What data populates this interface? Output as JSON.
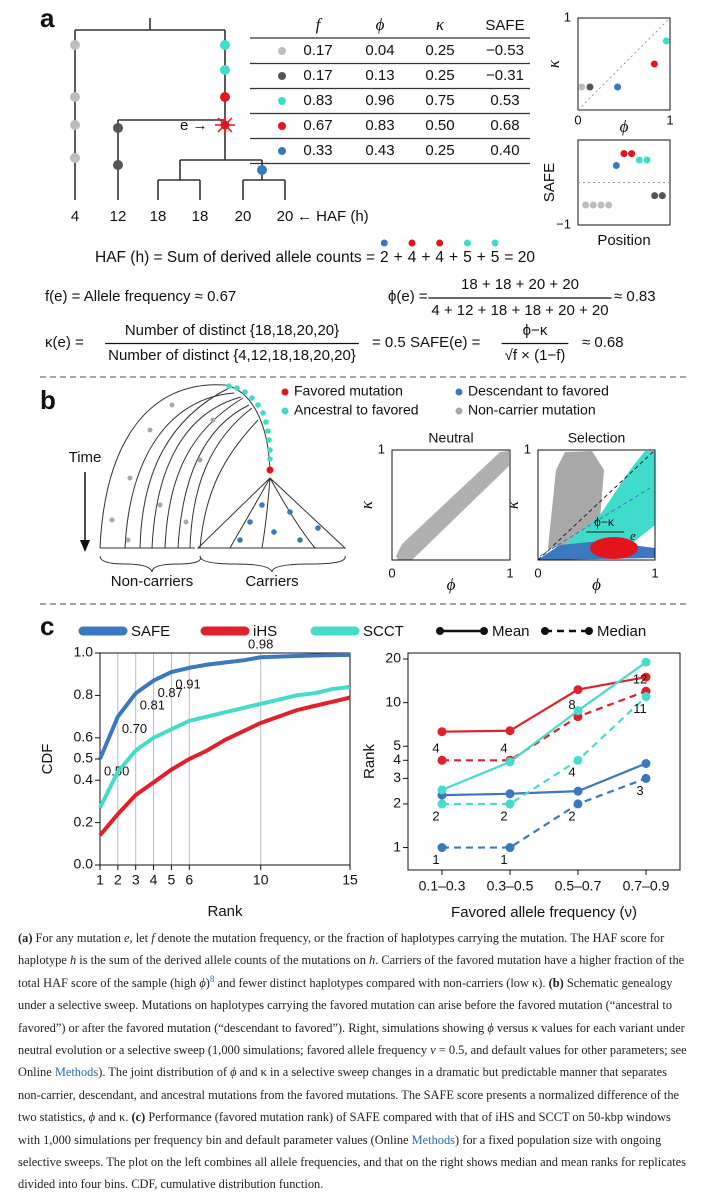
{
  "panel_a": {
    "label": "a",
    "tree_haf": [
      4,
      12,
      18,
      18,
      20,
      20
    ],
    "haf_axis_label": "← HAF (h)",
    "e_label": "e →",
    "table": {
      "header": [
        "f",
        "ϕ",
        "κ",
        "SAFE"
      ],
      "rows": [
        {
          "color": "#bdbdbd",
          "cells": [
            "0.17",
            "0.04",
            "0.25",
            "−0.53"
          ]
        },
        {
          "color": "#555555",
          "cells": [
            "0.17",
            "0.13",
            "0.25",
            "−0.31"
          ]
        },
        {
          "color": "#3fdccb",
          "cells": [
            "0.83",
            "0.96",
            "0.75",
            "0.53"
          ]
        },
        {
          "color": "#e5141c",
          "cells": [
            "0.67",
            "0.83",
            "0.50",
            "0.68"
          ]
        },
        {
          "color": "#3a78c0",
          "cells": [
            "0.33",
            "0.43",
            "0.25",
            "0.40"
          ]
        }
      ]
    },
    "haf_formula": {
      "prefix": "HAF (h) = Sum of derived allele counts =",
      "terms": [
        2,
        4,
        4,
        5,
        5
      ],
      "term_colors": [
        "#3a78c0",
        "#e5141c",
        "#e5141c",
        "#3fdccb",
        "#3fdccb"
      ],
      "separator": "+",
      "suffix": "= 20"
    },
    "f_formula": "f(e) = Allele frequency ≈ 0.67",
    "phi_formula": {
      "lhs": "ϕ(e) =",
      "numerator": "18 + 18 + 20 + 20",
      "denominator": "4 + 12 + 18 + 18 + 20 + 20",
      "rhs": "≈ 0.83"
    },
    "kappa_formula": {
      "lhs": "κ(e) =",
      "numerator": "Number of distinct {18,18,20,20}",
      "denominator": "Number of distinct {4,12,18,18,20,20}",
      "rhs": "= 0.5"
    },
    "safe_formula": {
      "lhs": "SAFE(e) =",
      "numerator": "ϕ−κ",
      "denominator": "√f × (1−f)",
      "rhs": "≈ 0.68"
    }
  },
  "panel_b": {
    "label": "b",
    "legend": [
      {
        "name": "Favored mutation",
        "color": "#e5141c"
      },
      {
        "name": "Descendant to favored",
        "color": "#3a78c0"
      },
      {
        "name": "Ancestral to favored",
        "color": "#3fdccb"
      },
      {
        "name": "Non-carrier mutation",
        "color": "#a8a8a8"
      }
    ],
    "time_label": "Time",
    "noncarriers_label": "Non-carriers",
    "carriers_label": "Carriers"
  },
  "panel_c": {
    "label": "c",
    "legend_methods": [
      {
        "name": "SAFE",
        "color": "#3a78c0"
      },
      {
        "name": "iHS",
        "color": "#e0202a"
      },
      {
        "name": "SCCT",
        "color": "#45dccb"
      }
    ],
    "legend_styles": [
      {
        "name": "Mean",
        "dashed": false
      },
      {
        "name": "Median",
        "dashed": true
      }
    ]
  },
  "chart_data": [
    {
      "type": "scatter",
      "x": [
        0.04,
        0.13,
        0.96,
        0.83,
        0.43
      ],
      "values": [
        0.25,
        0.25,
        0.75,
        0.5,
        0.25
      ],
      "colors": [
        "#bdbdbd",
        "#555555",
        "#3fdccb",
        "#e5141c",
        "#3a78c0"
      ],
      "xlim": [
        0,
        1
      ],
      "ylim": [
        0,
        1
      ],
      "xticks": [
        0,
        1
      ],
      "yticks": [
        1
      ],
      "xlabel": "ϕ",
      "ylabel": "κ",
      "diagonal": true
    },
    {
      "type": "scatter",
      "x": [
        1,
        2,
        3,
        4,
        5,
        6,
        7,
        8,
        9,
        10,
        11
      ],
      "values": [
        -0.53,
        -0.53,
        -0.53,
        -0.53,
        0.4,
        0.68,
        0.68,
        0.53,
        0.53,
        -0.31,
        -0.31
      ],
      "colors": [
        "#bdbdbd",
        "#bdbdbd",
        "#bdbdbd",
        "#bdbdbd",
        "#3a78c0",
        "#e5141c",
        "#e5141c",
        "#3fdccb",
        "#3fdccb",
        "#555555",
        "#555555"
      ],
      "xlim": [
        0,
        12
      ],
      "ylim": [
        -1,
        1
      ],
      "xticks": [],
      "yticks": [
        {
          "value": -1,
          "label": "−1"
        }
      ],
      "xlabel": "Position",
      "ylabel": "SAFE",
      "zero_line": true
    },
    {
      "type": "scatter",
      "title": "Neutral",
      "xlim": [
        0,
        1
      ],
      "ylim": [
        0,
        1
      ],
      "xticks": [
        0,
        1
      ],
      "yticks": [
        1
      ],
      "xlabel": "ϕ",
      "ylabel": "κ"
    },
    {
      "type": "scatter",
      "title": "Selection",
      "xlim": [
        0,
        1
      ],
      "ylim": [
        0,
        1
      ],
      "xticks": [
        0,
        1
      ],
      "yticks": [
        1
      ],
      "xlabel": "ϕ",
      "ylabel": "κ",
      "phi_minus_kappa_label": "ϕ−κ",
      "e_label": "e"
    },
    {
      "type": "line",
      "x": [
        1,
        2,
        3,
        4,
        5,
        6,
        7,
        8,
        9,
        10,
        11,
        12,
        13,
        14,
        15
      ],
      "xlim": [
        1,
        15
      ],
      "ylim": [
        0,
        1
      ],
      "xticks": [
        1,
        2,
        3,
        4,
        5,
        6,
        10,
        15
      ],
      "yticks": [
        {
          "value": 0,
          "label": "0.0"
        },
        0.2,
        0.4,
        0.5,
        0.6,
        0.8,
        {
          "value": 1,
          "label": "1.0"
        }
      ],
      "grid": "x",
      "xlabel": "Rank",
      "ylabel": "CDF",
      "series": [
        {
          "color": "#3a78c0",
          "values": [
            0.5,
            0.7,
            0.81,
            0.87,
            0.91,
            0.93,
            0.945,
            0.955,
            0.965,
            0.98,
            0.983,
            0.986,
            0.988,
            0.99,
            0.991
          ],
          "value_labels": [
            "0.50",
            "0.70",
            "0.81",
            "0.87",
            "0.91",
            null,
            null,
            null,
            null,
            "0.98",
            null,
            null,
            null,
            null,
            null
          ]
        },
        {
          "color": "#e0202a",
          "values": [
            0.14,
            0.24,
            0.33,
            0.39,
            0.45,
            0.5,
            0.54,
            0.59,
            0.63,
            0.67,
            0.7,
            0.73,
            0.75,
            0.77,
            0.79
          ]
        },
        {
          "color": "#45dccb",
          "values": [
            0.27,
            0.44,
            0.54,
            0.6,
            0.64,
            0.68,
            0.7,
            0.72,
            0.74,
            0.76,
            0.78,
            0.8,
            0.81,
            0.83,
            0.84
          ]
        }
      ]
    },
    {
      "type": "line",
      "categories": [
        "0.1–0.3",
        "0.3–0.5",
        "0.5–0.7",
        "0.7–0.9"
      ],
      "log_y": true,
      "ylim": [
        0.7,
        22
      ],
      "yticks": [
        1,
        2,
        3,
        4,
        5,
        10,
        20
      ],
      "markers": true,
      "xlabel": "Favored allele frequency (ν)",
      "ylabel": "Rank",
      "series": [
        {
          "color": "#3a78c0",
          "dashed": false,
          "values": [
            2.3,
            2.35,
            2.45,
            3.8
          ]
        },
        {
          "color": "#3a78c0",
          "dashed": true,
          "values": [
            1,
            1,
            2,
            3
          ],
          "labels": true,
          "label_side": "below"
        },
        {
          "color": "#e0202a",
          "dashed": false,
          "values": [
            6.3,
            6.4,
            12.3,
            15
          ]
        },
        {
          "color": "#e0202a",
          "dashed": true,
          "values": [
            4,
            4,
            8,
            12
          ],
          "labels": true,
          "label_side": "above"
        },
        {
          "color": "#45dccb",
          "dashed": false,
          "values": [
            2.5,
            3.9,
            8.8,
            19
          ]
        },
        {
          "color": "#45dccb",
          "dashed": true,
          "values": [
            2,
            2,
            4,
            11
          ],
          "labels": true,
          "label_side": "below"
        }
      ]
    }
  ],
  "caption": [
    {
      "s": "b",
      "t": "(a)"
    },
    {
      "t": " For any mutation "
    },
    {
      "s": "i",
      "t": "e"
    },
    {
      "t": ", let "
    },
    {
      "s": "i",
      "t": "f"
    },
    {
      "t": " denote the mutation frequency, or the fraction of haplotypes carrying the mutation. The HAF score for haplotype "
    },
    {
      "s": "i",
      "t": "h"
    },
    {
      "t": " is the sum of the derived allele counts of the mutations on "
    },
    {
      "s": "i",
      "t": "h"
    },
    {
      "t": ". Carriers of the favored mutation have a higher fraction of the total HAF score of the sample (high "
    },
    {
      "s": "i",
      "t": "ϕ"
    },
    {
      "t": ")"
    },
    {
      "s": "sup",
      "t": "8"
    },
    {
      "t": " and fewer distinct haplotypes compared with non-carriers (low κ). "
    },
    {
      "s": "b",
      "t": "(b)"
    },
    {
      "t": " Schematic genealogy under a selective sweep. Mutations on haplotypes carrying the favored mutation can arise before the favored mutation (“ancestral to favored”) or after the favored mutation (“descendant to favored”). Right, simulations showing "
    },
    {
      "s": "i",
      "t": "ϕ"
    },
    {
      "t": " versus κ values for each variant under neutral evolution or a selective sweep (1,000 simulations; favored allele frequency "
    },
    {
      "s": "i",
      "t": "ν"
    },
    {
      "t": " = 0.5, and default values for other parameters; see Online "
    },
    {
      "s": "link",
      "t": "Methods"
    },
    {
      "t": "). The joint distribution of "
    },
    {
      "s": "i",
      "t": "ϕ"
    },
    {
      "t": " and κ in a selective sweep changes in a dramatic but predictable manner that separates non-carrier, descendant, and ancestral mutations from the favored mutations. The SAFE score presents a normalized difference of the two statistics, "
    },
    {
      "s": "i",
      "t": "ϕ"
    },
    {
      "t": " and κ. "
    },
    {
      "s": "b",
      "t": "(c)"
    },
    {
      "t": " Performance (favored mutation rank) of SAFE compared with that of iHS and SCCT on 50-kbp windows with 1,000 simulations per frequency bin and default parameter values (Online "
    },
    {
      "s": "link",
      "t": "Methods"
    },
    {
      "t": ") for a fixed population size with ongoing selective sweeps. The plot on the left combines all allele frequencies, and that on the right shows median and mean ranks for replicates divided into four bins. CDF, cumulative distribution function."
    }
  ]
}
